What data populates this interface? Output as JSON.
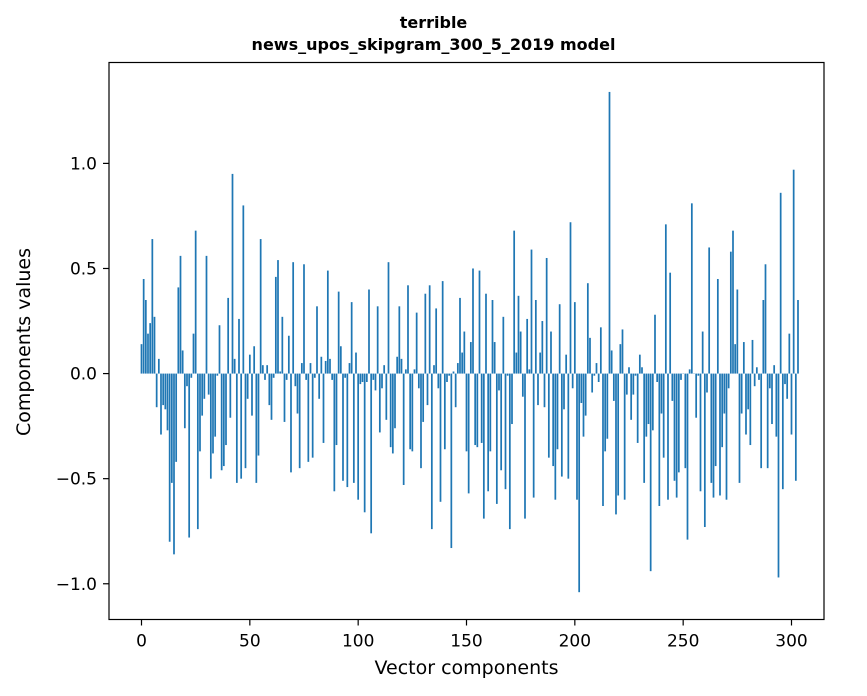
{
  "chart_data": {
    "type": "bar",
    "title_line1": "terrible",
    "title_line2": "news_upos_skipgram_300_5_2019 model",
    "xlabel": "Vector components",
    "ylabel": "Components values",
    "xlim": [
      -15,
      315
    ],
    "ylim": [
      -1.17,
      1.48
    ],
    "x_ticks": [
      0,
      50,
      100,
      150,
      200,
      250,
      300
    ],
    "x_tick_labels": [
      "0",
      "50",
      "100",
      "150",
      "200",
      "250",
      "300"
    ],
    "y_ticks": [
      1.0,
      0.5,
      0.0,
      -0.5,
      -1.0
    ],
    "y_tick_labels": [
      "1.0",
      "0.5",
      "0.0",
      "−0.5",
      "−1.0"
    ],
    "bar_color": "#1f77b4",
    "series": [
      {
        "values": [
          0.14,
          0.45,
          0.35,
          0.19,
          0.24,
          0.64,
          0.27,
          -0.16,
          0.07,
          -0.29,
          -0.15,
          -0.17,
          -0.27,
          -0.8,
          -0.52,
          -0.86,
          -0.42,
          0.41,
          0.56,
          0.11,
          -0.26,
          -0.06,
          -0.78,
          -0.02,
          0.19,
          0.68,
          -0.74,
          -0.37,
          -0.2,
          -0.12,
          0.56,
          -0.1,
          -0.5,
          -0.38,
          -0.3,
          -0.01,
          0.23,
          -0.46,
          -0.44,
          -0.34,
          0.36,
          -0.21,
          0.95,
          0.07,
          -0.52,
          0.26,
          -0.5,
          0.8,
          -0.45,
          -0.12,
          0.09,
          -0.2,
          0.13,
          -0.52,
          -0.39,
          0.64,
          0.04,
          -0.03,
          0.04,
          -0.15,
          -0.22,
          -0.02,
          0.46,
          0.54,
          0.01,
          0.27,
          -0.23,
          -0.03,
          0.18,
          -0.47,
          0.53,
          -0.06,
          -0.19,
          -0.45,
          0.05,
          0.52,
          -0.03,
          -0.42,
          0.05,
          -0.4,
          -0.02,
          0.32,
          -0.12,
          0.08,
          -0.33,
          0.06,
          0.49,
          0.07,
          -0.03,
          -0.56,
          -0.34,
          0.39,
          0.13,
          -0.51,
          -0.02,
          -0.54,
          0.05,
          0.34,
          -0.52,
          0.1,
          -0.6,
          -0.05,
          -0.04,
          -0.66,
          -0.04,
          0.4,
          -0.76,
          -0.03,
          -0.08,
          0.32,
          -0.28,
          -0.07,
          0.04,
          -0.22,
          0.53,
          -0.35,
          -0.38,
          -0.26,
          0.08,
          0.32,
          0.07,
          -0.53,
          0.02,
          0.42,
          -0.36,
          -0.37,
          0.02,
          0.29,
          -0.07,
          -0.45,
          -0.23,
          0.38,
          -0.15,
          0.42,
          -0.74,
          0.04,
          0.31,
          -0.07,
          -0.61,
          0.44,
          -0.36,
          -0.04,
          -0.01,
          -0.83,
          0.01,
          -0.16,
          0.05,
          0.36,
          0.1,
          0.2,
          -0.37,
          -0.57,
          0.15,
          0.5,
          -0.34,
          -0.35,
          0.49,
          -0.33,
          -0.69,
          0.38,
          -0.56,
          -0.37,
          0.35,
          0.15,
          -0.62,
          -0.08,
          -0.46,
          0.27,
          -0.55,
          -0.01,
          -0.74,
          -0.24,
          0.68,
          0.1,
          0.37,
          0.2,
          -0.11,
          -0.69,
          0.26,
          0.02,
          0.59,
          -0.59,
          0.35,
          -0.15,
          0.1,
          0.25,
          -0.16,
          0.55,
          -0.4,
          0.2,
          -0.44,
          -0.6,
          -0.36,
          0.33,
          -0.49,
          -0.17,
          0.09,
          -0.5,
          0.72,
          -0.07,
          0.34,
          -0.6,
          -1.04,
          -0.14,
          -0.3,
          -0.2,
          0.43,
          0.17,
          -0.09,
          -0.01,
          0.05,
          -0.04,
          0.22,
          -0.63,
          -0.37,
          -0.31,
          1.34,
          0.11,
          -0.13,
          -0.67,
          -0.58,
          0.14,
          0.21,
          -0.6,
          -0.1,
          0.03,
          -0.22,
          -0.1,
          -0.01,
          -0.33,
          0.09,
          0.03,
          -0.52,
          -0.3,
          -0.24,
          -0.94,
          -0.27,
          0.28,
          -0.04,
          -0.63,
          -0.19,
          -0.4,
          0.71,
          -0.6,
          0.48,
          -0.13,
          -0.51,
          -0.59,
          -0.47,
          -0.03,
          0.0,
          -0.45,
          -0.79,
          0.02,
          0.81,
          0.0,
          -0.21,
          -0.01,
          -0.56,
          0.2,
          -0.73,
          -0.09,
          0.6,
          -0.52,
          -0.59,
          -0.44,
          0.45,
          -0.58,
          -0.35,
          -0.19,
          -0.6,
          -0.07,
          0.58,
          0.68,
          0.14,
          0.4,
          -0.52,
          -0.19,
          0.15,
          -0.29,
          -0.17,
          -0.34,
          0.16,
          -0.06,
          0.03,
          -0.03,
          -0.45,
          0.35,
          0.52,
          -0.45,
          -0.07,
          -0.24,
          0.04,
          -0.3,
          -0.97,
          0.86,
          -0.55,
          -0.05,
          -0.12,
          0.19,
          -0.29,
          0.97,
          -0.51,
          0.35
        ]
      }
    ]
  }
}
